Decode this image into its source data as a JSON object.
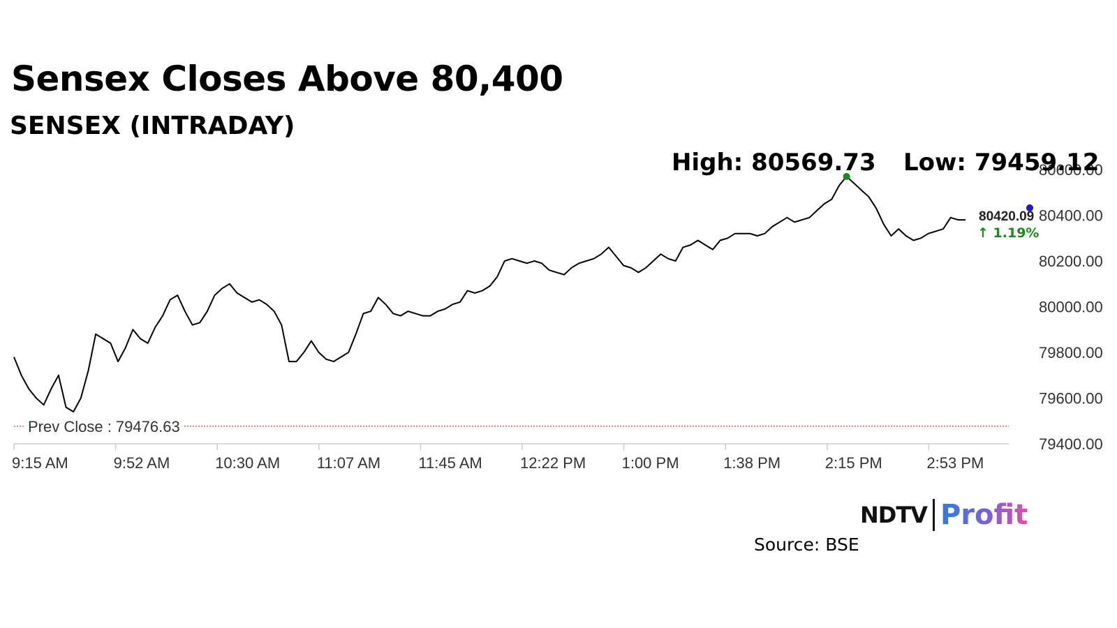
{
  "header": {
    "title": "Sensex Closes Above 80,400",
    "subtitle": "SENSEX (INTRADAY)"
  },
  "chart_data": {
    "type": "line",
    "series": [
      {
        "values": [
          79780,
          79700,
          79640,
          79600,
          79570,
          79640,
          79700,
          79560,
          79540,
          79600,
          79720,
          79880,
          79860,
          79840,
          79760,
          79820,
          79900,
          79860,
          79840,
          79910,
          79960,
          80030,
          80050,
          79980,
          79920,
          79930,
          79980,
          80050,
          80080,
          80100,
          80060,
          80040,
          80020,
          80030,
          80010,
          79980,
          79920,
          79760,
          79760,
          79800,
          79850,
          79800,
          79770,
          79760,
          79780,
          79800,
          79880,
          79970,
          79980,
          80040,
          80010,
          79970,
          79960,
          79980,
          79970,
          79960,
          79960,
          79980,
          79990,
          80010,
          80020,
          80070,
          80060,
          80070,
          80090,
          80130,
          80200,
          80210,
          80200,
          80190,
          80200,
          80190,
          80160,
          80150,
          80140,
          80170,
          80190,
          80200,
          80210,
          80230,
          80260,
          80220,
          80180,
          80170,
          80150,
          80170,
          80200,
          80230,
          80210,
          80200,
          80260,
          80270,
          80290,
          80270,
          80250,
          80290,
          80300,
          80320,
          80320,
          80320,
          80310,
          80320,
          80350,
          80370,
          80390,
          80370,
          80380,
          80390,
          80420,
          80450,
          80470,
          80530,
          80569.73,
          80540,
          80510,
          80480,
          80430,
          80360,
          80310,
          80340,
          80310,
          80290,
          80300,
          80320,
          80330,
          80340,
          80390,
          80380,
          80380
        ],
        "last_value": "80420.09",
        "change": "1.19%",
        "change_arrow": "↑"
      }
    ],
    "x_ticks": [
      "9:15 AM",
      "9:52 AM",
      "10:30 AM",
      "11:07 AM",
      "11:45 AM",
      "12:22 PM",
      "1:00 PM",
      "1:38 PM",
      "2:15 PM",
      "2:53 PM"
    ],
    "y_ticks": [
      "80600.00",
      "80400.00",
      "80200.00",
      "80000.00",
      "79800.00",
      "79600.00",
      "79400.00"
    ],
    "ylim": [
      79400,
      80600
    ],
    "high_label": "High: 80569.73",
    "high_value": 80569.73,
    "low_label": "Low: 79459.12",
    "prev_close_label": "Prev Close : 79476.63",
    "prev_close_value": 79476.63,
    "colors": {
      "line": "#000000",
      "high_marker": "#1a8a1a",
      "low_marker": "#e00000",
      "last_marker": "#1a1acc",
      "change": "#1a8a1a",
      "prev_close": "#cc2222",
      "axis": "#cccccc",
      "tick_text": "#333333"
    }
  },
  "branding": {
    "logo_left": "NDTV",
    "logo_right": "Profit",
    "source": "Source: BSE"
  }
}
